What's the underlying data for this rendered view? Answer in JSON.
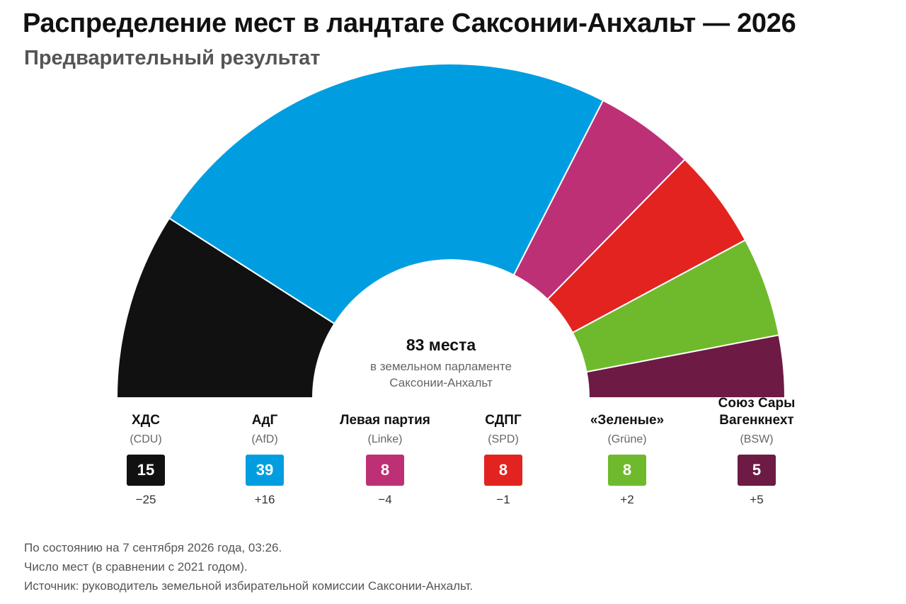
{
  "header": {
    "title": "Распределение мест в ландтаге Саксонии-Анхальт — 2026",
    "subtitle": "Предварительный результат"
  },
  "center": {
    "total": "83 места",
    "line1": "в земельном парламенте",
    "line2": "Саксонии-Анхальт"
  },
  "chart_data": {
    "type": "pie",
    "variant": "half-donut (parliament)",
    "total_seats": 83,
    "parties": [
      {
        "name": "ХДС",
        "abbr": "(CDU)",
        "seats": 15,
        "change": "−25",
        "color": "#111111"
      },
      {
        "name": "АдГ",
        "abbr": "(AfD)",
        "seats": 39,
        "change": "+16",
        "color": "#009ee0"
      },
      {
        "name": "Левая партия",
        "abbr": "(Linke)",
        "seats": 8,
        "change": "−4",
        "color": "#be3075"
      },
      {
        "name": "СДПГ",
        "abbr": "(SPD)",
        "seats": 8,
        "change": "−1",
        "color": "#e3231f"
      },
      {
        "name": "«Зеленые»",
        "abbr": "(Grüne)",
        "seats": 8,
        "change": "+2",
        "color": "#6fba2c"
      },
      {
        "name": "Союз Сары Вагенкнехт",
        "abbr": "(BSW)",
        "seats": 5,
        "change": "+5",
        "color": "#6d1a45"
      }
    ]
  },
  "footer": {
    "line1": "По состоянию на 7 сентября 2026 года, 03:26.",
    "line2": "Число мест (в сравнении с 2021 годом).",
    "line3": "Источник: руководитель земельной избирательной комиссии Саксонии-Анхальт."
  }
}
